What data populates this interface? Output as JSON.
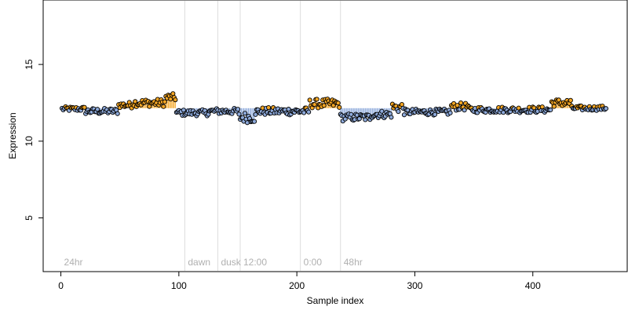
{
  "chart_data": {
    "type": "scatter",
    "xlabel": "Sample index",
    "ylabel": "Expression",
    "xlim": [
      -15,
      480
    ],
    "ylim": [
      1.5,
      19.2
    ],
    "x_ticks": [
      0,
      100,
      200,
      300,
      400
    ],
    "y_ticks": [
      5,
      10,
      15
    ],
    "baseline": 12.15,
    "colors": {
      "low": "#8eaadb",
      "high": "#f5a623",
      "point_outline": "#000000",
      "vline": "#dcdcdc",
      "label": "#b0b0b0"
    },
    "markers": [
      {
        "label": "24hr",
        "x": 0
      },
      {
        "label": "dawn",
        "x": 105
      },
      {
        "label": "dusk",
        "x": 133
      },
      {
        "label": "12:00",
        "x": 152
      },
      {
        "label": "0:00",
        "x": 203
      },
      {
        "label": "48hr",
        "x": 237
      }
    ],
    "segments": [
      {
        "x_start": 1,
        "x_end": 20,
        "level": 12.1,
        "amp": 0.15
      },
      {
        "x_start": 21,
        "x_end": 48,
        "level": 11.95,
        "amp": 0.2
      },
      {
        "x_start": 49,
        "x_end": 60,
        "level": 12.35,
        "amp": 0.2
      },
      {
        "x_start": 61,
        "x_end": 88,
        "level": 12.5,
        "amp": 0.25
      },
      {
        "x_start": 89,
        "x_end": 97,
        "level": 12.85,
        "amp": 0.25
      },
      {
        "x_start": 98,
        "x_end": 125,
        "level": 11.85,
        "amp": 0.2
      },
      {
        "x_start": 126,
        "x_end": 150,
        "level": 11.95,
        "amp": 0.2
      },
      {
        "x_start": 151,
        "x_end": 165,
        "level": 11.55,
        "amp": 0.35
      },
      {
        "x_start": 166,
        "x_end": 210,
        "level": 11.95,
        "amp": 0.25
      },
      {
        "x_start": 211,
        "x_end": 236,
        "level": 12.45,
        "amp": 0.3
      },
      {
        "x_start": 237,
        "x_end": 262,
        "level": 11.55,
        "amp": 0.25
      },
      {
        "x_start": 263,
        "x_end": 280,
        "level": 11.75,
        "amp": 0.25
      },
      {
        "x_start": 281,
        "x_end": 290,
        "level": 12.2,
        "amp": 0.35
      },
      {
        "x_start": 291,
        "x_end": 330,
        "level": 11.9,
        "amp": 0.2
      },
      {
        "x_start": 331,
        "x_end": 345,
        "level": 12.25,
        "amp": 0.25
      },
      {
        "x_start": 346,
        "x_end": 415,
        "level": 12.05,
        "amp": 0.2
      },
      {
        "x_start": 416,
        "x_end": 432,
        "level": 12.5,
        "amp": 0.25
      },
      {
        "x_start": 433,
        "x_end": 462,
        "level": 12.15,
        "amp": 0.15
      }
    ]
  }
}
